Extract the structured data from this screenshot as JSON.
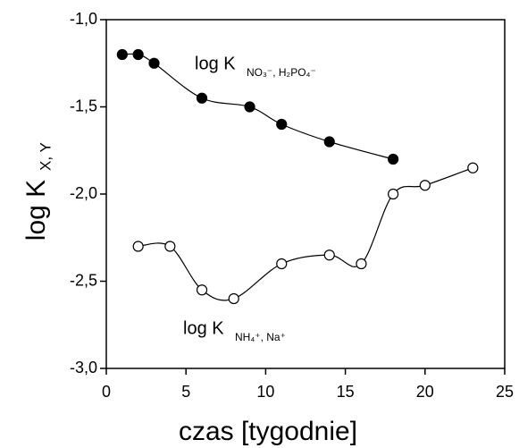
{
  "chart_data": {
    "type": "scatter",
    "xlabel": "czas [tygodnie]",
    "ylabel": {
      "text": "log K",
      "subscript": "X, Y"
    },
    "xlim": [
      0,
      25
    ],
    "xticks": [
      0,
      5,
      10,
      15,
      20,
      25
    ],
    "ylim": [
      -3.0,
      -1.0
    ],
    "yticks": [
      {
        "value": -3.0,
        "label": "-3,0"
      },
      {
        "value": -2.5,
        "label": "-2,5"
      },
      {
        "value": -2.0,
        "label": "-2,0"
      },
      {
        "value": -1.5,
        "label": "-1,5"
      },
      {
        "value": -1.0,
        "label": "-1,0"
      }
    ],
    "series": [
      {
        "color": "#000000",
        "marker": "filled",
        "x": [
          1,
          2,
          3,
          6,
          9,
          11,
          14,
          18
        ],
        "values": [
          -1.2,
          -1.2,
          -1.25,
          -1.45,
          -1.5,
          -1.6,
          -1.7,
          -1.8
        ]
      },
      {
        "color": "#000000",
        "marker": "open",
        "x": [
          2,
          4,
          6,
          8,
          11,
          14,
          16,
          18,
          20,
          23
        ],
        "values": [
          -2.3,
          -2.3,
          -2.55,
          -2.6,
          -2.4,
          -2.35,
          -2.4,
          -2.0,
          -1.95,
          -1.85
        ]
      }
    ],
    "annotations": [
      {
        "text": "log K",
        "subscript": "NO₃⁻, H₂PO₄⁻"
      },
      {
        "text": "log K",
        "subscript": "NH₄⁺, Na⁺"
      }
    ]
  }
}
